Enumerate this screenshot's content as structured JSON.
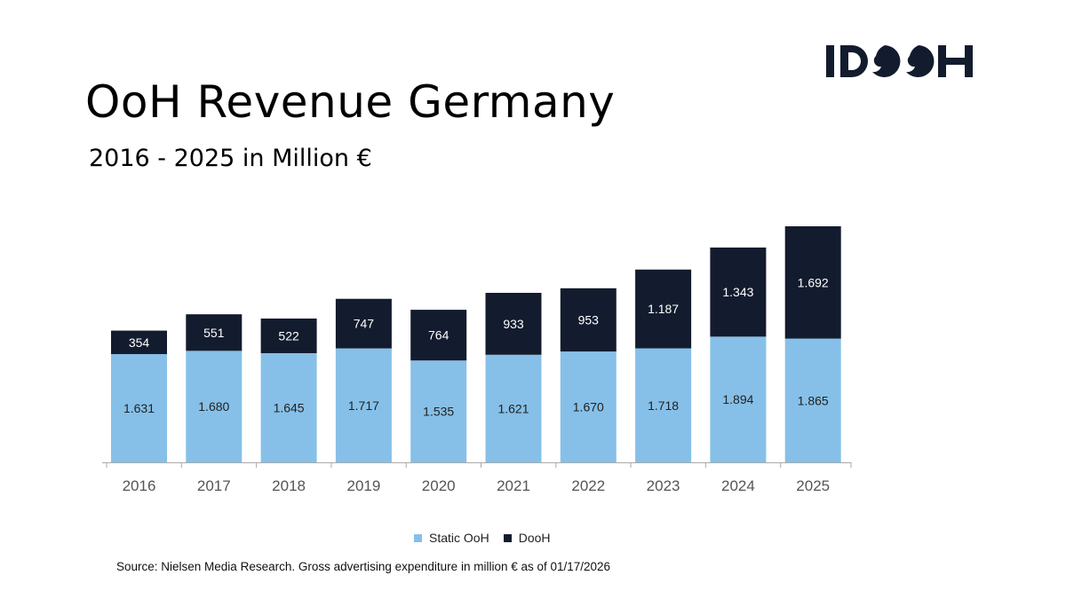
{
  "logo_text": "IDOOH",
  "chart_data": {
    "type": "bar",
    "stacked": true,
    "title": "OoH Revenue Germany",
    "subtitle": "2016 - 2025 in Million €",
    "categories": [
      "2016",
      "2017",
      "2018",
      "2019",
      "2020",
      "2021",
      "2022",
      "2023",
      "2024",
      "2025"
    ],
    "series": [
      {
        "name": "Static OoH",
        "color": "#86c0e8",
        "label_color": "#222222",
        "values": [
          1631,
          1680,
          1645,
          1717,
          1535,
          1621,
          1670,
          1718,
          1894,
          1865
        ]
      },
      {
        "name": "DooH",
        "color": "#131c2e",
        "label_color": "#ffffff",
        "values": [
          354,
          551,
          522,
          747,
          764,
          933,
          953,
          1187,
          1343,
          1692
        ]
      }
    ],
    "ylim": [
      0,
      3557
    ],
    "grid": false,
    "legend_position": "bottom",
    "number_format": "thousands separator '.'"
  },
  "source": "Source: Nielsen Media Research. Gross advertising expenditure in million € as of 01/17/2026"
}
